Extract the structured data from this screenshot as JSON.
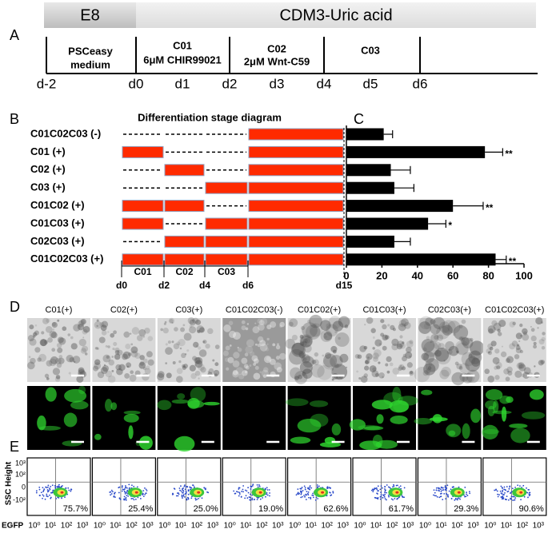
{
  "panel_labels": [
    "A",
    "B",
    "C",
    "D",
    "E"
  ],
  "panel_a": {
    "media": [
      "E8",
      "CDM3-Uric acid"
    ],
    "stages": [
      {
        "lines": [
          "PSCeasy",
          "medium"
        ]
      },
      {
        "lines": [
          "C01",
          "6μM CHIR99021"
        ]
      },
      {
        "lines": [
          "C02",
          "2μM Wnt-C59"
        ]
      },
      {
        "lines": [
          "C03"
        ]
      }
    ],
    "days": [
      "d-2",
      "d0",
      "d1",
      "d2",
      "d3",
      "d4",
      "d5",
      "d6"
    ]
  },
  "panel_b": {
    "title": "Differentiation stage diagram",
    "stage_names": [
      "C01",
      "C02",
      "C03"
    ],
    "days": [
      "d0",
      "d2",
      "d4",
      "d6",
      "d15"
    ],
    "stage_on": [
      [
        false,
        false,
        false
      ],
      [
        true,
        false,
        false
      ],
      [
        false,
        true,
        false
      ],
      [
        false,
        false,
        true
      ],
      [
        true,
        true,
        false
      ],
      [
        true,
        false,
        true
      ],
      [
        false,
        true,
        true
      ],
      [
        true,
        true,
        true
      ]
    ],
    "color": "#ff2a00"
  },
  "chart_data": {
    "type": "bar",
    "orientation": "horizontal",
    "categories": [
      "C01C02C03 (-)",
      "C01 (+)",
      "C02 (+)",
      "C03 (+)",
      "C01C02 (+)",
      "C01C03 (+)",
      "C02C03 (+)",
      "C01C02C03 (+)"
    ],
    "values": [
      21,
      78,
      25,
      27,
      60,
      46,
      27,
      84
    ],
    "errors": [
      5,
      10,
      11,
      11,
      17,
      10,
      9,
      6
    ],
    "significance": [
      null,
      "**",
      null,
      null,
      "**",
      "*",
      null,
      "**"
    ],
    "color": "#000000",
    "xlim": [
      0,
      100
    ],
    "xticks": [
      0,
      20,
      40,
      60,
      80,
      100
    ]
  },
  "panel_d": {
    "conditions": [
      "C01(+)",
      "C02(+)",
      "C03(+)",
      "C01C02C03(-)",
      "C01C02(+)",
      "C01C03(+)",
      "C02C03(+)",
      "C01C02C03(+)"
    ]
  },
  "panel_e": {
    "y_label": "SSC Height",
    "x_label": "EGFP",
    "yticks": [
      "10³",
      "10²",
      "0",
      "-10²"
    ],
    "xticks": [
      "10⁰",
      "10¹",
      "10²",
      "10³"
    ],
    "percentages": [
      "75.7%",
      "25.4%",
      "25.0%",
      "19.0%",
      "62.6%",
      "61.7%",
      "29.3%",
      "90.6%"
    ]
  }
}
